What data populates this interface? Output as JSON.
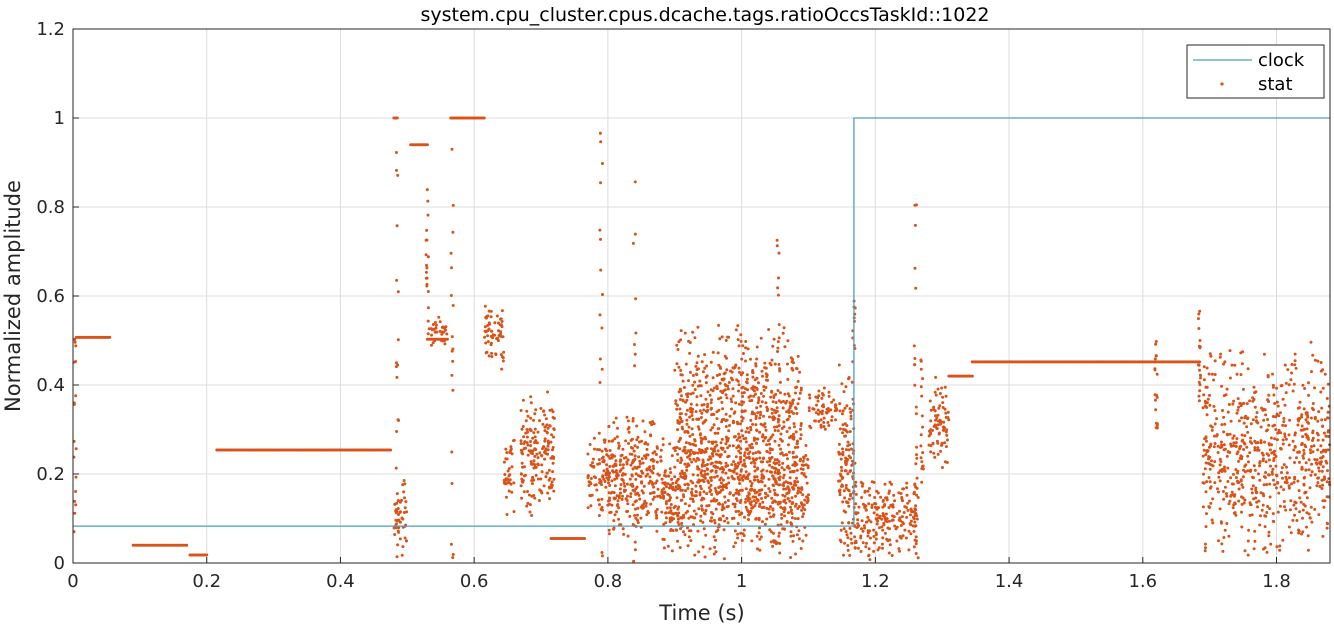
{
  "chart_data": {
    "type": "line",
    "title": "system.cpu_cluster.cpus.dcache.tags.ratioOccsTaskId::1022",
    "xlabel": "Time (s)",
    "ylabel": "Normalized amplitude",
    "xlim": [
      0,
      1.88
    ],
    "ylim": [
      0,
      1.2
    ],
    "xticks": [
      0,
      0.2,
      0.4,
      0.6,
      0.8,
      1,
      1.2,
      1.4,
      1.6,
      1.8
    ],
    "xtick_labels": [
      "0",
      "0.2",
      "0.4",
      "0.6",
      "0.8",
      "1",
      "1.2",
      "1.4",
      "1.6",
      "1.8"
    ],
    "yticks": [
      0,
      0.2,
      0.4,
      0.6,
      0.8,
      1,
      1.2
    ],
    "ytick_labels": [
      "0",
      "0.2",
      "0.4",
      "0.6",
      "0.8",
      "1",
      "1.2"
    ],
    "grid": true,
    "legend": "top-right",
    "colors": {
      "clock": "#4a9fc4",
      "stat": "#d95319"
    },
    "series": [
      {
        "name": "clock",
        "style": "line",
        "x": [
          0,
          1.168,
          1.168,
          1.88
        ],
        "y": [
          0.083,
          0.083,
          1.0,
          1.0
        ]
      },
      {
        "name": "stat",
        "style": "dots",
        "segments": [
          {
            "x": [
              0.005,
              0.055
            ],
            "y": 0.507
          },
          {
            "x": 0.09,
            "x_end": 0.17,
            "y": 0.04
          },
          {
            "x": [
              0.175,
              0.2
            ],
            "y": 0.018
          },
          {
            "x": [
              0.215,
              0.475
            ],
            "y": 0.254
          },
          {
            "x": [
              0.48,
              0.485
            ],
            "y": 1.0
          },
          {
            "x": [
              0.505,
              0.53
            ],
            "y": 0.94
          },
          {
            "x": [
              0.53,
              0.56
            ],
            "y": 0.503
          },
          {
            "x": [
              0.565,
              0.615
            ],
            "y": 1.0
          },
          {
            "x": [
              0.715,
              0.765
            ],
            "y": 0.055
          },
          {
            "x": [
              1.31,
              1.345
            ],
            "y": 0.42
          },
          {
            "x": [
              1.345,
              1.685
            ],
            "y": 0.452
          }
        ],
        "clusters": [
          {
            "x": [
              0.48,
              0.5
            ],
            "y": [
              0.0,
              0.2
            ]
          },
          {
            "x": [
              0.53,
              0.56
            ],
            "y": [
              0.48,
              0.57
            ]
          },
          {
            "x": [
              0.615,
              0.645
            ],
            "y": [
              0.43,
              0.6
            ]
          },
          {
            "x": [
              0.645,
              0.66
            ],
            "y": [
              0.08,
              0.3
            ]
          },
          {
            "x": [
              0.67,
              0.72
            ],
            "y": [
              0.1,
              0.4
            ]
          },
          {
            "x": [
              0.77,
              0.8
            ],
            "y": [
              0.1,
              0.3
            ]
          },
          {
            "x": [
              0.8,
              0.88
            ],
            "y": [
              0.05,
              0.35
            ]
          },
          {
            "x": [
              0.88,
              1.1
            ],
            "y": [
              0.0,
              0.3
            ]
          },
          {
            "x": [
              0.9,
              1.09
            ],
            "y": [
              0.1,
              0.55
            ]
          },
          {
            "x": [
              1.1,
              1.145
            ],
            "y": [
              0.29,
              0.4
            ]
          },
          {
            "x": [
              1.145,
              1.168
            ],
            "y": [
              0.0,
              0.45
            ]
          },
          {
            "x": [
              1.168,
              1.265
            ],
            "y": [
              0.0,
              0.2
            ]
          },
          {
            "x": [
              1.28,
              1.31
            ],
            "y": [
              0.2,
              0.42
            ]
          },
          {
            "x": [
              1.69,
              1.88
            ],
            "y": [
              0.0,
              0.5
            ]
          }
        ],
        "spikes": [
          {
            "x": 0.003,
            "y": [
              0.0,
              0.507
            ]
          },
          {
            "x": 0.485,
            "y": [
              0.0,
              1.0
            ]
          },
          {
            "x": 0.53,
            "y": [
              0.5,
              0.85
            ]
          },
          {
            "x": 0.567,
            "y": [
              0.0,
              1.0
            ]
          },
          {
            "x": 0.79,
            "y": [
              0.0,
              1.0
            ]
          },
          {
            "x": 0.84,
            "y": [
              0.0,
              0.95
            ]
          },
          {
            "x": 1.26,
            "y": [
              0.0,
              0.83
            ]
          },
          {
            "x": 1.27,
            "y": [
              0.15,
              0.52
            ]
          },
          {
            "x": 1.168,
            "y": [
              0.05,
              0.59
            ]
          },
          {
            "x": 1.055,
            "y": [
              0.0,
              0.89
            ]
          },
          {
            "x": 1.62,
            "y": [
              0.3,
              0.5
            ]
          },
          {
            "x": 1.685,
            "y": [
              0.36,
              0.57
            ]
          }
        ]
      }
    ]
  }
}
